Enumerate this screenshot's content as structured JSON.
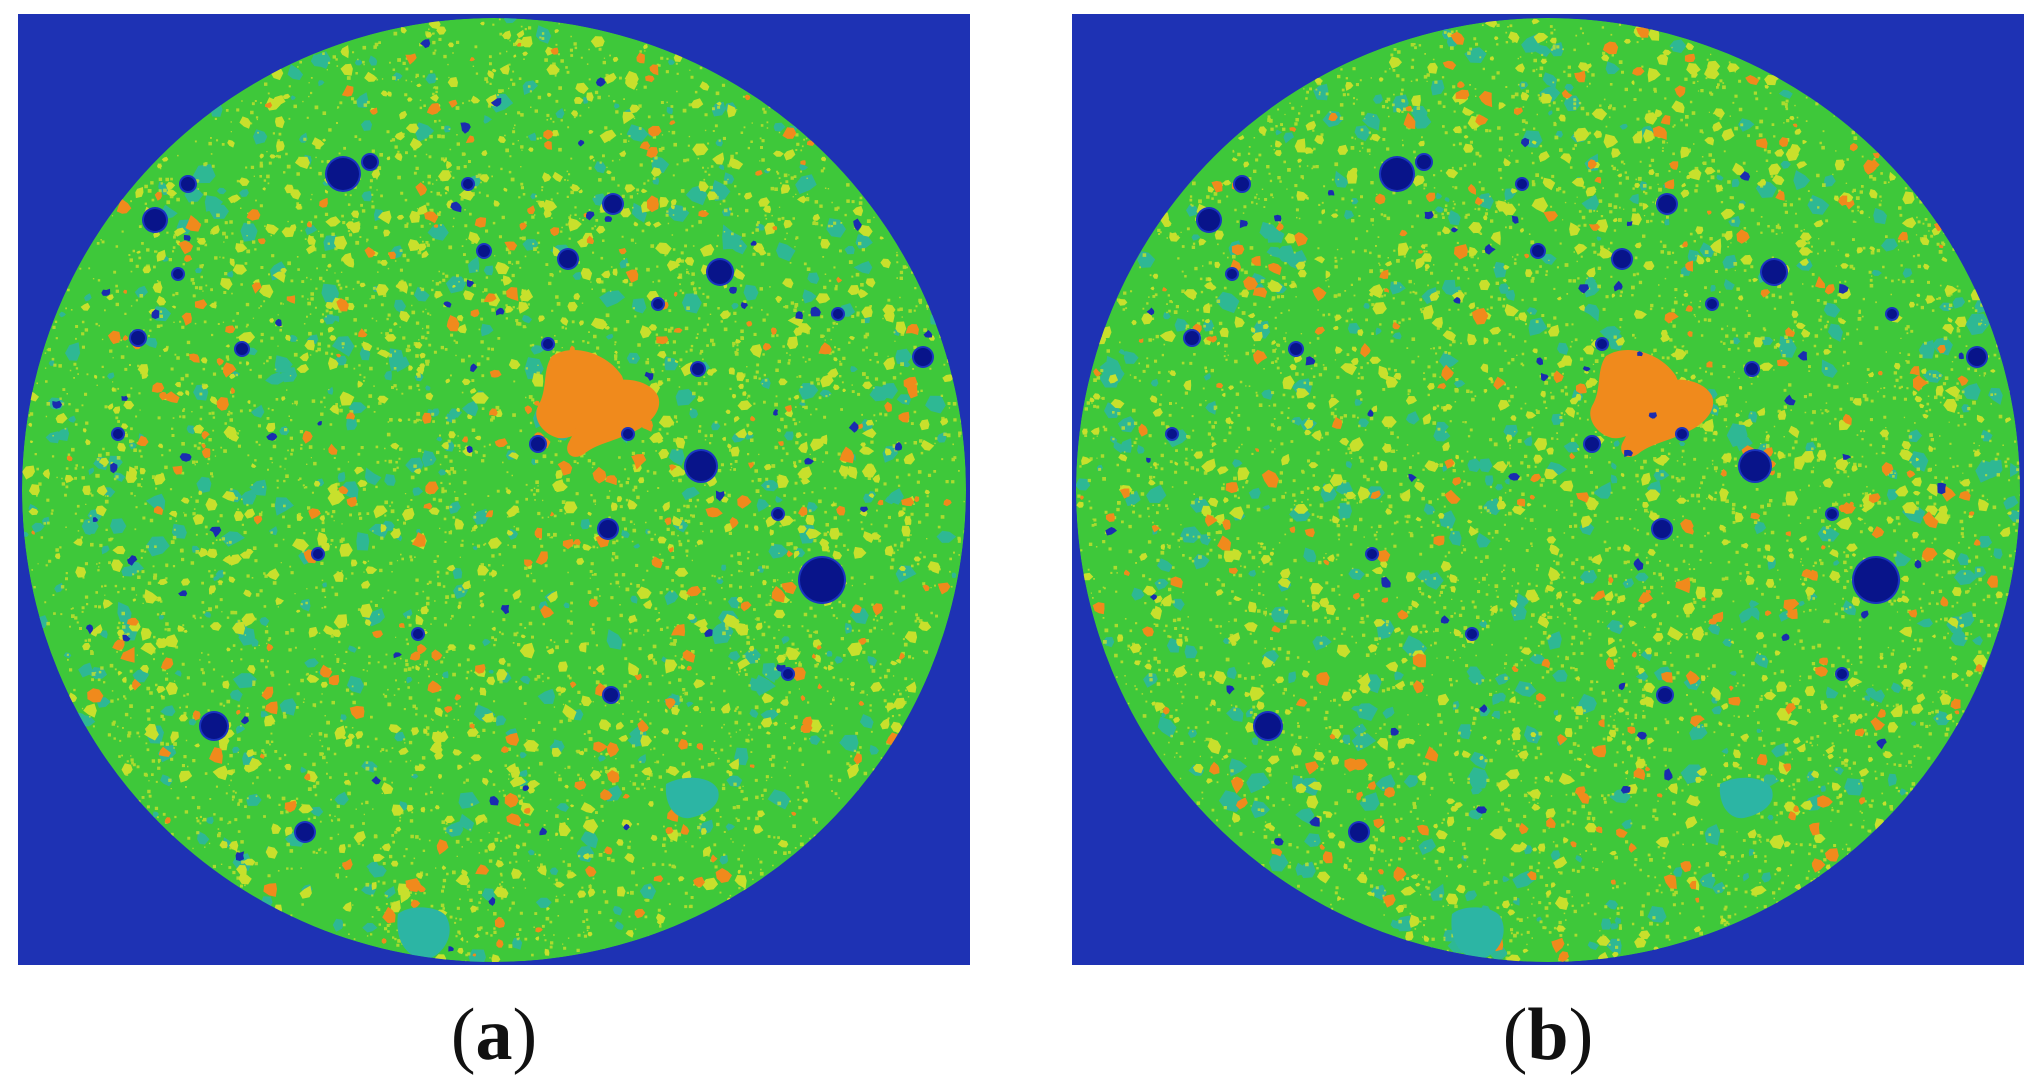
{
  "panels": [
    {
      "id": "a",
      "caption_letter": "a"
    },
    {
      "id": "b",
      "caption_letter": "b"
    }
  ],
  "palette": {
    "background": "#1e32b4",
    "matrix": "#3ec83a",
    "cyan_phase": "#2cb5a4",
    "yellow_phase": "#c8e02c",
    "orange_phase": "#f08a1c",
    "pore": "#08148a"
  }
}
